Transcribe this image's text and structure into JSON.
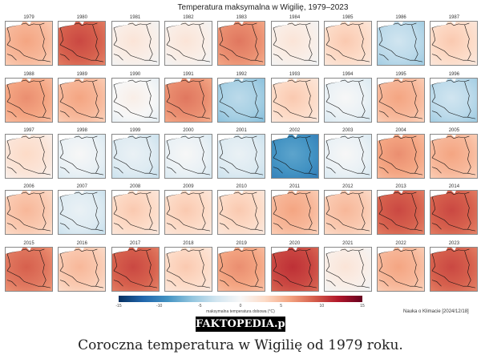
{
  "title": "Temperatura maksymalna w Wigilię, 1979–2023",
  "chart_data": {
    "type": "heatmap",
    "title": "Temperatura maksymalna w Wigilię, 1979–2023",
    "panels": [
      {
        "year": "1979",
        "value": 5
      },
      {
        "year": "1980",
        "value": 9
      },
      {
        "year": "1981",
        "value": 1
      },
      {
        "year": "1982",
        "value": 1
      },
      {
        "year": "1983",
        "value": 7
      },
      {
        "year": "1984",
        "value": 1
      },
      {
        "year": "1985",
        "value": 3
      },
      {
        "year": "1986",
        "value": -4
      },
      {
        "year": "1987",
        "value": 3
      },
      {
        "year": "1988",
        "value": 6
      },
      {
        "year": "1989",
        "value": 5
      },
      {
        "year": "1990",
        "value": 0
      },
      {
        "year": "1991",
        "value": 7
      },
      {
        "year": "1992",
        "value": -5
      },
      {
        "year": "1993",
        "value": 3
      },
      {
        "year": "1994",
        "value": -1
      },
      {
        "year": "1995",
        "value": 5
      },
      {
        "year": "1996",
        "value": -4
      },
      {
        "year": "1997",
        "value": 2
      },
      {
        "year": "1998",
        "value": -1
      },
      {
        "year": "1999",
        "value": -2
      },
      {
        "year": "2000",
        "value": -1
      },
      {
        "year": "2001",
        "value": -2
      },
      {
        "year": "2002",
        "value": -9
      },
      {
        "year": "2003",
        "value": -1
      },
      {
        "year": "2004",
        "value": 6
      },
      {
        "year": "2005",
        "value": 5
      },
      {
        "year": "2006",
        "value": 4
      },
      {
        "year": "2007",
        "value": -2
      },
      {
        "year": "2008",
        "value": 3
      },
      {
        "year": "2009",
        "value": 3
      },
      {
        "year": "2010",
        "value": 3
      },
      {
        "year": "2011",
        "value": 5
      },
      {
        "year": "2012",
        "value": 4
      },
      {
        "year": "2013",
        "value": 9
      },
      {
        "year": "2014",
        "value": 9
      },
      {
        "year": "2015",
        "value": 8
      },
      {
        "year": "2016",
        "value": 4
      },
      {
        "year": "2017",
        "value": 9
      },
      {
        "year": "2018",
        "value": 3
      },
      {
        "year": "2019",
        "value": 6
      },
      {
        "year": "2020",
        "value": 10
      },
      {
        "year": "2021",
        "value": 1
      },
      {
        "year": "2022",
        "value": 5
      },
      {
        "year": "2023",
        "value": 9
      }
    ],
    "colorbar": {
      "label": "maksymalna temperatura dobowa (°C)",
      "range": [
        -15,
        15
      ],
      "ticks": [
        "-15",
        "-10",
        "-5",
        "0",
        "5",
        "10",
        "15"
      ],
      "colormap": "RdBu_r"
    }
  },
  "source": "Nauka o Klimacie [2024/12/18]",
  "watermark": "FAKTOPEDIA.pl",
  "caption": "Coroczna temperatura w Wigilię od 1979 roku."
}
